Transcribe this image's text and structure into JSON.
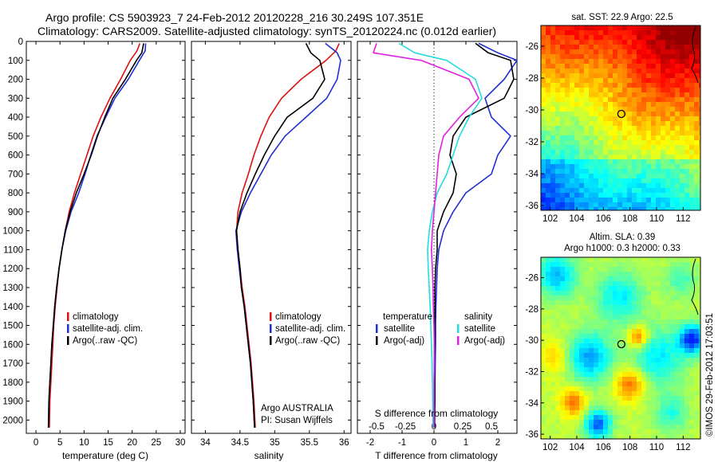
{
  "figure": {
    "title_line1": "Argo profile: CS 5903923_7 24-Feb-2012 20120228_216 30.249S 107.351E",
    "title_line2": "Climatology: CARS2009. Satellite-adjusted climatology: synTS_20120224.nc (0.012d earlier)",
    "side_stamp": "©IMOS 29-Feb-2012 17:03:51",
    "credit_line1": "Argo AUSTRALIA",
    "credit_line2": "PI: Susan Wijffels"
  },
  "colors": {
    "climatology": "#dd1111",
    "satellite": "#1f2fd6",
    "argo": "#000000",
    "argo_temp_adj": "#000000",
    "sat_salinity": "#22dddd",
    "argo_salinity_adj": "#e020e0",
    "marker": "#000000"
  },
  "legends": {
    "temp_panel": [
      "climatology",
      "satellite-adj. clim.",
      "Argo(..raw -QC)"
    ],
    "sal_panel": [
      "climatology",
      "satellite-adj. clim.",
      "Argo(..raw -QC)"
    ],
    "diff_panel": {
      "temperature_header": "temperature",
      "salinity_header": "salinity",
      "temperature_items": [
        "satellite",
        "Argo(-adj)"
      ],
      "salinity_items": [
        "satellite",
        "Argo(-adj)"
      ]
    }
  },
  "chart_data": [
    {
      "type": "line",
      "panel": "temperature",
      "xlabel": "temperature (deg C)",
      "ylabel": "",
      "xlim": [
        -2,
        31
      ],
      "ylim": [
        2070,
        0
      ],
      "y_inverted": true,
      "xticks": [
        0,
        5,
        10,
        15,
        20,
        25,
        30
      ],
      "yticks": [
        0,
        100,
        200,
        300,
        400,
        500,
        600,
        700,
        800,
        900,
        1000,
        1100,
        1200,
        1300,
        1400,
        1500,
        1600,
        1700,
        1800,
        1900,
        2000
      ],
      "series": [
        {
          "name": "climatology",
          "color_key": "climatology",
          "x": [
            21.6,
            21.0,
            19.6,
            17.6,
            15.4,
            13.5,
            11.9,
            10.6,
            9.3,
            8.0,
            6.9,
            6.1,
            5.4,
            4.8,
            4.4,
            4.0,
            3.7,
            3.5,
            3.3,
            3.1,
            2.9,
            2.8
          ],
          "y": [
            10,
            50,
            100,
            200,
            300,
            400,
            500,
            600,
            700,
            800,
            900,
            1000,
            1100,
            1200,
            1300,
            1400,
            1500,
            1600,
            1700,
            1800,
            1900,
            2040
          ]
        },
        {
          "name": "satellite-adj. clim.",
          "color_key": "satellite",
          "x": [
            22.8,
            22.7,
            21.5,
            19.2,
            16.4,
            14.5,
            12.7,
            11.4,
            10.2,
            8.9,
            7.3,
            6.2,
            5.4,
            4.8,
            4.3,
            3.9,
            3.6,
            3.3,
            3.1,
            2.9,
            2.7,
            2.6
          ],
          "y": [
            10,
            50,
            100,
            200,
            300,
            400,
            500,
            600,
            700,
            800,
            900,
            1000,
            1100,
            1200,
            1300,
            1400,
            1500,
            1600,
            1700,
            1800,
            1900,
            2040
          ]
        },
        {
          "name": "Argo(..raw -QC)",
          "color_key": "argo",
          "x": [
            22.4,
            22.0,
            20.9,
            18.6,
            16.0,
            14.3,
            12.8,
            11.5,
            10.0,
            8.4,
            7.1,
            6.1,
            5.4,
            4.8,
            4.3,
            3.9,
            3.6,
            3.3,
            3.1,
            2.9,
            2.7,
            2.6
          ],
          "y": [
            10,
            60,
            100,
            200,
            300,
            400,
            500,
            600,
            700,
            800,
            900,
            1000,
            1100,
            1200,
            1300,
            1400,
            1500,
            1600,
            1700,
            1800,
            1900,
            2040
          ]
        }
      ]
    },
    {
      "type": "line",
      "panel": "salinity",
      "xlabel": "salinity",
      "ylabel": "",
      "xlim": [
        33.8,
        36.1
      ],
      "ylim": [
        2070,
        0
      ],
      "y_inverted": true,
      "xticks": [
        34,
        34.5,
        35,
        35.5,
        36
      ],
      "series": [
        {
          "name": "climatology",
          "color_key": "climatology",
          "x": [
            35.93,
            35.88,
            35.74,
            35.38,
            35.1,
            34.92,
            34.8,
            34.7,
            34.62,
            34.53,
            34.47,
            34.45,
            34.47,
            34.5,
            34.53,
            34.57,
            34.6,
            34.63,
            34.66,
            34.68,
            34.7,
            34.72
          ],
          "y": [
            10,
            50,
            100,
            200,
            300,
            400,
            500,
            600,
            700,
            800,
            900,
            1000,
            1100,
            1200,
            1300,
            1400,
            1500,
            1600,
            1700,
            1800,
            1900,
            2040
          ]
        },
        {
          "name": "satellite-adj. clim.",
          "color_key": "satellite",
          "x": [
            35.73,
            35.9,
            35.95,
            35.9,
            35.75,
            35.45,
            35.15,
            34.95,
            34.8,
            34.65,
            34.52,
            34.44,
            34.46,
            34.49,
            34.52,
            34.56,
            34.59,
            34.62,
            34.65,
            34.67,
            34.69,
            34.71
          ],
          "y": [
            10,
            60,
            100,
            200,
            300,
            400,
            500,
            600,
            700,
            800,
            900,
            1000,
            1100,
            1200,
            1300,
            1400,
            1500,
            1600,
            1700,
            1800,
            1900,
            2040
          ]
        },
        {
          "name": "Argo(..raw -QC)",
          "color_key": "argo",
          "x": [
            35.45,
            35.52,
            35.65,
            35.72,
            35.55,
            35.18,
            35.0,
            34.85,
            34.72,
            34.6,
            34.5,
            34.45,
            34.47,
            34.5,
            34.52,
            34.56,
            34.59,
            34.62,
            34.65,
            34.67,
            34.69,
            34.71
          ],
          "y": [
            10,
            60,
            100,
            200,
            300,
            400,
            500,
            600,
            700,
            800,
            900,
            1000,
            1100,
            1200,
            1300,
            1400,
            1500,
            1600,
            1700,
            1800,
            1900,
            2040
          ]
        }
      ]
    },
    {
      "type": "line",
      "panel": "differences",
      "xlabel": "T difference from climatology",
      "x2label": "S difference from climatology",
      "xlim": [
        -2.4,
        2.6
      ],
      "ylim": [
        2070,
        0
      ],
      "y_inverted": true,
      "xticks": [
        -2,
        -1,
        0,
        1,
        2
      ],
      "x2ticks_labels": [
        "-0.5",
        "-0.25",
        "0",
        "0.25",
        "0.5"
      ],
      "x2ticks_T": [
        -1.8,
        -0.9,
        0,
        0.9,
        1.8
      ],
      "zero_line": "dotted",
      "series": [
        {
          "name": "temperature satellite",
          "color_key": "satellite",
          "x": [
            1.4,
            2.0,
            2.6,
            2.2,
            1.6,
            1.8,
            2.4,
            2.0,
            1.8,
            1.0,
            0.6,
            0.3,
            0.15,
            0.1,
            0.08,
            0.06,
            0.05,
            0.05,
            0.04,
            0.03,
            0.03,
            0.02
          ],
          "y": [
            10,
            60,
            100,
            200,
            300,
            400,
            500,
            600,
            700,
            800,
            900,
            1000,
            1100,
            1200,
            1300,
            1400,
            1500,
            1600,
            1700,
            1800,
            1900,
            2040
          ]
        },
        {
          "name": "temperature Argo(-adj)",
          "color_key": "argo_temp_adj",
          "x": [
            1.3,
            1.7,
            2.4,
            2.5,
            2.2,
            1.0,
            0.6,
            0.5,
            0.7,
            0.6,
            0.3,
            0.1,
            0.1,
            0.05,
            0.03,
            0.03,
            0.02,
            0.02,
            0.01,
            0.02,
            0.02,
            0.01
          ],
          "y": [
            10,
            60,
            100,
            200,
            300,
            400,
            500,
            600,
            700,
            800,
            900,
            1000,
            1100,
            1200,
            1300,
            1400,
            1500,
            1600,
            1700,
            1800,
            1900,
            2040
          ]
        },
        {
          "name": "salinity satellite",
          "color_key": "sat_salinity",
          "x": [
            -1.1,
            -0.6,
            0.4,
            1.3,
            1.5,
            1.1,
            0.8,
            0.6,
            0.4,
            0.1,
            -0.05,
            -0.15,
            -0.2,
            -0.18,
            -0.15,
            -0.12,
            -0.1,
            -0.08,
            -0.06,
            -0.05,
            -0.04,
            -0.03
          ],
          "y": [
            10,
            60,
            100,
            200,
            300,
            400,
            500,
            600,
            700,
            800,
            900,
            1000,
            1100,
            1200,
            1300,
            1400,
            1500,
            1600,
            1700,
            1800,
            1900,
            2040
          ]
        },
        {
          "name": "salinity Argo(-adj)",
          "color_key": "argo_salinity_adj",
          "x": [
            -1.8,
            -1.9,
            -0.4,
            1.1,
            1.4,
            0.8,
            0.3,
            0.15,
            0.1,
            0.05,
            0.0,
            -0.05,
            -0.08,
            -0.05,
            -0.03,
            -0.02,
            0.0,
            0.01,
            0.01,
            0.0,
            0.0,
            0.0
          ],
          "y": [
            10,
            60,
            100,
            200,
            300,
            400,
            500,
            600,
            700,
            800,
            900,
            1000,
            1100,
            1200,
            1300,
            1400,
            1500,
            1600,
            1700,
            1800,
            1900,
            2040
          ]
        }
      ]
    },
    {
      "type": "heatmap",
      "panel": "sst_map",
      "title": "sat. SST: 22.9  Argo: 22.5",
      "xlim": [
        101.3,
        113.3
      ],
      "ylim": [
        -36.3,
        -24.7
      ],
      "xticks": [
        102,
        104,
        106,
        108,
        110,
        112
      ],
      "yticks": [
        -26,
        -28,
        -30,
        -32,
        -34,
        -36
      ],
      "colormap": "jet (warm north-east, cool south)",
      "marker": {
        "lon": 107.351,
        "lat": -30.249
      }
    },
    {
      "type": "heatmap",
      "panel": "sla_map",
      "title_line1": "Altim. SLA: 0.39",
      "title_line2": "Argo h1000: 0.3  h2000: 0.33",
      "xlim": [
        101.3,
        113.3
      ],
      "ylim": [
        -36.3,
        -24.7
      ],
      "xticks": [
        102,
        104,
        106,
        108,
        110,
        112
      ],
      "yticks": [
        -26,
        -28,
        -30,
        -32,
        -34,
        -36
      ],
      "colormap": "jet (eddy field)",
      "marker": {
        "lon": 107.351,
        "lat": -30.249
      }
    }
  ]
}
